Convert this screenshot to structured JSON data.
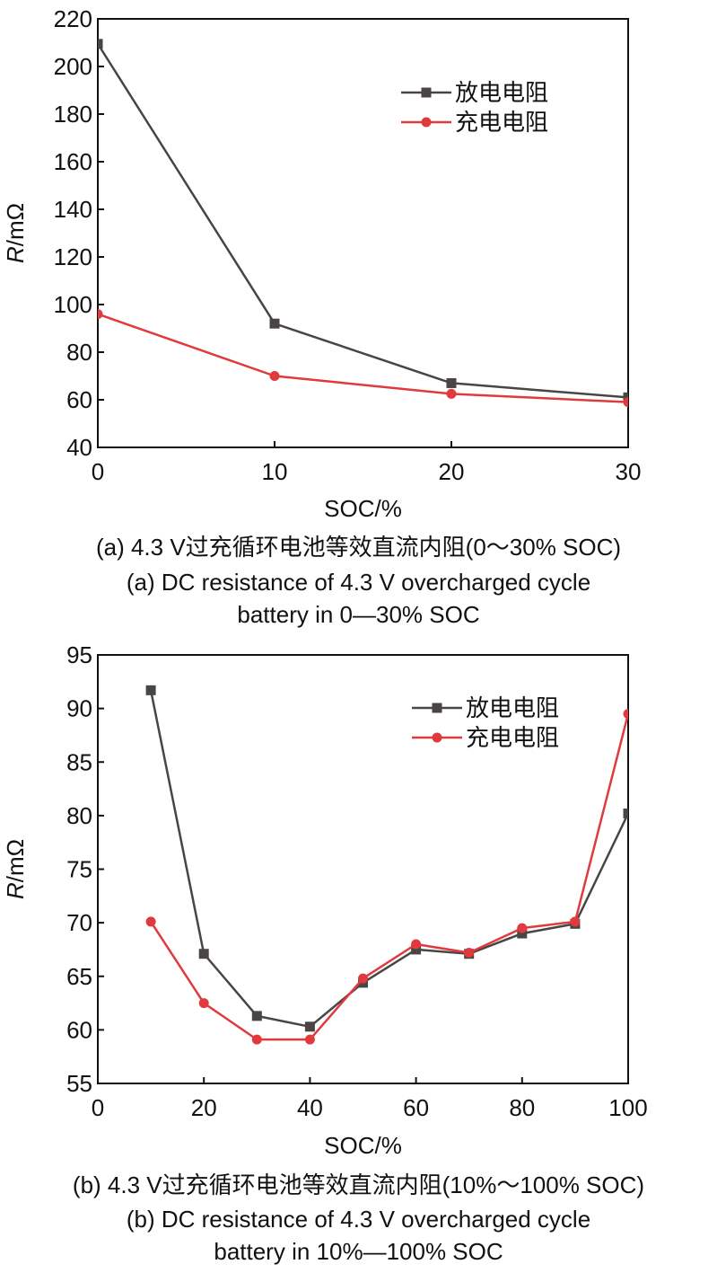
{
  "chart_data": [
    {
      "id": "a",
      "type": "line",
      "title": "",
      "xlabel": "SOC/%",
      "ylabel_italic": "R",
      "ylabel_unit": "/mΩ",
      "xlim": [
        0,
        30
      ],
      "ylim": [
        40,
        220
      ],
      "xticks": [
        0,
        10,
        20,
        30
      ],
      "yticks": [
        40,
        60,
        80,
        100,
        120,
        140,
        160,
        180,
        200,
        220
      ],
      "grid": false,
      "legend_position": "top-right",
      "series": [
        {
          "name": "放电电阻",
          "color": "#4a4545",
          "marker": "square",
          "x": [
            0,
            10,
            20,
            30
          ],
          "y": [
            209.5,
            92,
            67,
            61
          ]
        },
        {
          "name": "充电电阻",
          "color": "#e03a3e",
          "marker": "circle",
          "x": [
            0,
            10,
            20,
            30
          ],
          "y": [
            96,
            70,
            62.5,
            59
          ]
        }
      ],
      "caption_cn": "(a) 4.3 V过充循环电池等效直流内阻(0～30% SOC)",
      "caption_en_1": "(a) DC resistance of 4.3 V overcharged cycle",
      "caption_en_2": "battery in 0—30% SOC"
    },
    {
      "id": "b",
      "type": "line",
      "title": "",
      "xlabel": "SOC/%",
      "ylabel_italic": "R",
      "ylabel_unit": "/mΩ",
      "xlim": [
        0,
        100
      ],
      "ylim": [
        55,
        95
      ],
      "xticks": [
        0,
        20,
        40,
        60,
        80,
        100
      ],
      "yticks": [
        55,
        60,
        65,
        70,
        75,
        80,
        85,
        90,
        95
      ],
      "grid": false,
      "legend_position": "top-right",
      "series": [
        {
          "name": "放电电阻",
          "color": "#4a4545",
          "marker": "square",
          "x": [
            10,
            20,
            30,
            40,
            50,
            60,
            70,
            80,
            90,
            100
          ],
          "y": [
            91.7,
            67.1,
            61.3,
            60.3,
            64.4,
            67.5,
            67.1,
            69.0,
            69.9,
            80.2
          ]
        },
        {
          "name": "充电电阻",
          "color": "#e03a3e",
          "marker": "circle",
          "x": [
            10,
            20,
            30,
            40,
            50,
            60,
            70,
            80,
            90,
            100
          ],
          "y": [
            70.1,
            62.5,
            59.1,
            59.1,
            64.8,
            68.0,
            67.2,
            69.5,
            70.1,
            89.5
          ]
        }
      ],
      "caption_cn": "(b) 4.3 V过充循环电池等效直流内阻(10%～100% SOC)",
      "caption_en_1": "(b) DC resistance of 4.3 V overcharged cycle",
      "caption_en_2": "battery in 10%—100% SOC"
    }
  ]
}
